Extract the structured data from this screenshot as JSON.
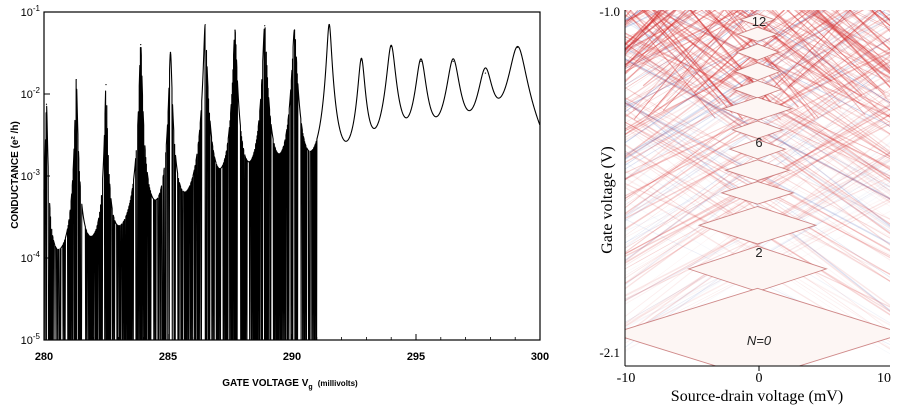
{
  "chart_data": [
    {
      "type": "line",
      "title": "",
      "xlabel": "GATE VOLTAGE V",
      "xlabel_subscript": "g",
      "xlabel_unit": "(millivolts)",
      "ylabel": "CONDUCTANCE (e² /h)",
      "xlim": [
        280,
        300
      ],
      "ylim": [
        1e-05,
        0.1
      ],
      "yscale": "log",
      "grid": false,
      "x_ticks": [
        "280",
        "285",
        "290",
        "295",
        "300"
      ],
      "y_ticks": [
        {
          "base": "10",
          "exp": "-5",
          "value": 1e-05
        },
        {
          "base": "10",
          "exp": "-4",
          "value": 0.0001
        },
        {
          "base": "10",
          "exp": "-3",
          "value": 0.001
        },
        {
          "base": "10",
          "exp": "-2",
          "value": 0.01
        },
        {
          "base": "10",
          "exp": "-1",
          "value": 0.1
        }
      ],
      "color": "#000000",
      "peaks": [
        {
          "x": 280.1,
          "y": 0.0075,
          "width": 0.03
        },
        {
          "x": 281.3,
          "y": 0.015,
          "width": 0.035
        },
        {
          "x": 282.5,
          "y": 0.013,
          "width": 0.035
        },
        {
          "x": 283.9,
          "y": 0.04,
          "width": 0.04
        },
        {
          "x": 285.1,
          "y": 0.032,
          "width": 0.045
        },
        {
          "x": 286.5,
          "y": 0.07,
          "width": 0.05
        },
        {
          "x": 287.7,
          "y": 0.06,
          "width": 0.055
        },
        {
          "x": 288.9,
          "y": 0.068,
          "width": 0.06
        },
        {
          "x": 290.1,
          "y": 0.06,
          "width": 0.07
        },
        {
          "x": 291.5,
          "y": 0.07,
          "width": 0.085
        },
        {
          "x": 292.8,
          "y": 0.026,
          "width": 0.12
        },
        {
          "x": 294.0,
          "y": 0.038,
          "width": 0.15
        },
        {
          "x": 295.2,
          "y": 0.025,
          "width": 0.18
        },
        {
          "x": 296.5,
          "y": 0.025,
          "width": 0.22
        },
        {
          "x": 297.8,
          "y": 0.018,
          "width": 0.26
        },
        {
          "x": 299.1,
          "y": 0.037,
          "width": 0.3
        }
      ],
      "noisy_baseline_until_x": 291.0
    },
    {
      "type": "heatmap",
      "title": "",
      "xlabel": "Source-drain voltage (mV)",
      "ylabel": "Gate voltage (V)",
      "xlim": [
        -10,
        10
      ],
      "ylim": [
        -2.1,
        -1.0
      ],
      "x_ticks": [
        "-10",
        "0",
        "10"
      ],
      "y_ticks": [
        "-2.1",
        "-1.0"
      ],
      "colormap": {
        "positive": "#d42a2a",
        "negative": "#3a55b0",
        "zero": "#ffffff"
      },
      "diamond_labels": [
        {
          "text": "12",
          "italic": false
        },
        {
          "text": "6",
          "italic": false
        },
        {
          "text": "2",
          "italic": false
        },
        {
          "text": "N=0",
          "italic": true
        }
      ],
      "diamonds": [
        {
          "gate": -1.03,
          "halfwidth": 1.3,
          "halfheight": 0.018
        },
        {
          "gate": -1.075,
          "halfwidth": 1.5,
          "halfheight": 0.022
        },
        {
          "gate": -1.13,
          "halfwidth": 1.6,
          "halfheight": 0.025
        },
        {
          "gate": -1.19,
          "halfwidth": 1.7,
          "halfheight": 0.027
        },
        {
          "gate": -1.245,
          "halfwidth": 1.8,
          "halfheight": 0.027
        },
        {
          "gate": -1.305,
          "halfwidth": 2.6,
          "halfheight": 0.035
        },
        {
          "gate": -1.37,
          "halfwidth": 1.9,
          "halfheight": 0.027
        },
        {
          "gate": -1.43,
          "halfwidth": 2.1,
          "halfheight": 0.03
        },
        {
          "gate": -1.495,
          "halfwidth": 2.4,
          "halfheight": 0.032
        },
        {
          "gate": -1.565,
          "halfwidth": 2.7,
          "halfheight": 0.035
        },
        {
          "gate": -1.665,
          "halfwidth": 4.4,
          "halfheight": 0.058
        },
        {
          "gate": -1.8,
          "halfwidth": 5.2,
          "halfheight": 0.07
        },
        {
          "gate": -2.0,
          "halfwidth": 11.0,
          "halfheight": 0.14
        }
      ]
    }
  ]
}
